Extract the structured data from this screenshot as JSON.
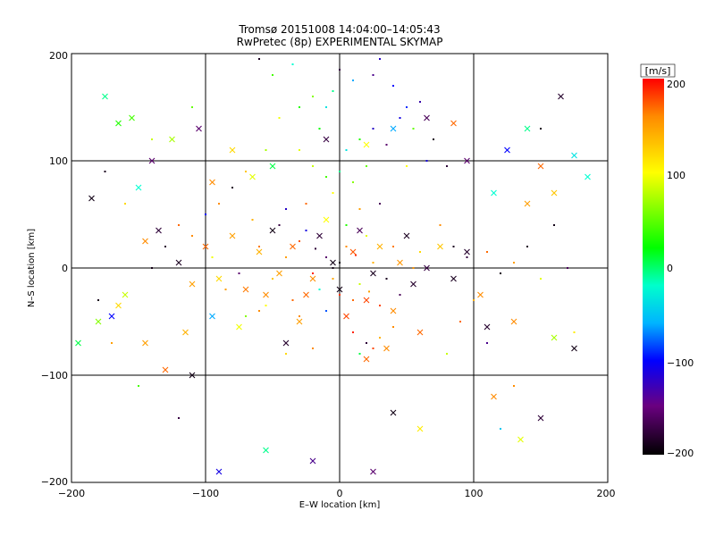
{
  "chart_data": {
    "type": "scatter",
    "title": "Tromsø 20151008 14:04:00–14:05:43",
    "subtitle": "RwPretec (8p) EXPERIMENTAL SKYMAP",
    "xlabel": "E–W location [km]",
    "ylabel": "N–S location [km]",
    "xlim": [
      -200,
      200
    ],
    "ylim": [
      -200,
      200
    ],
    "xticks": [
      "−200",
      "−100",
      "0",
      "100",
      "200"
    ],
    "yticks": [
      "−200",
      "−100",
      "0",
      "100",
      "200"
    ],
    "grid": true,
    "colorbar": {
      "label": "[m/s]",
      "range": [
        -200,
        200
      ],
      "ticks": [
        "200",
        "100",
        "0",
        "−100",
        "−200"
      ]
    },
    "series": [
      {
        "marker": "dot",
        "points": [
          [
            -10,
            10,
            -150
          ],
          [
            5,
            20,
            160
          ],
          [
            -20,
            -5,
            190
          ],
          [
            15,
            -15,
            60
          ],
          [
            -5,
            0,
            -190
          ],
          [
            25,
            5,
            140
          ],
          [
            -30,
            25,
            175
          ],
          [
            -15,
            -20,
            -30
          ],
          [
            10,
            -30,
            170
          ],
          [
            35,
            -10,
            -185
          ],
          [
            -40,
            10,
            150
          ],
          [
            0,
            -25,
            185
          ],
          [
            20,
            30,
            80
          ],
          [
            -25,
            35,
            -110
          ],
          [
            40,
            20,
            165
          ],
          [
            -50,
            -10,
            130
          ],
          [
            45,
            -25,
            -160
          ],
          [
            -35,
            -30,
            170
          ],
          [
            5,
            40,
            10
          ],
          [
            -10,
            -40,
            -80
          ],
          [
            55,
            0,
            155
          ],
          [
            30,
            -35,
            180
          ],
          [
            -45,
            40,
            -170
          ],
          [
            60,
            15,
            120
          ],
          [
            -60,
            20,
            165
          ],
          [
            0,
            5,
            -195
          ],
          [
            -5,
            -10,
            145
          ],
          [
            12,
            12,
            190
          ],
          [
            -18,
            18,
            -175
          ],
          [
            22,
            -22,
            150
          ],
          [
            -55,
            -35,
            100
          ],
          [
            -30,
            -45,
            160
          ],
          [
            10,
            -60,
            190
          ],
          [
            20,
            -70,
            -175
          ],
          [
            30,
            -65,
            140
          ],
          [
            40,
            -55,
            160
          ],
          [
            25,
            -75,
            180
          ],
          [
            15,
            -80,
            -10
          ],
          [
            -20,
            -75,
            160
          ],
          [
            -40,
            -80,
            120
          ],
          [
            -60,
            -40,
            160
          ],
          [
            -70,
            -45,
            40
          ],
          [
            -25,
            60,
            170
          ],
          [
            -40,
            55,
            -120
          ],
          [
            15,
            55,
            150
          ],
          [
            30,
            60,
            -160
          ],
          [
            -5,
            70,
            100
          ],
          [
            10,
            80,
            40
          ],
          [
            -10,
            85,
            20
          ],
          [
            0,
            90,
            -20
          ],
          [
            -20,
            95,
            60
          ],
          [
            20,
            95,
            30
          ],
          [
            -30,
            110,
            80
          ],
          [
            5,
            110,
            -40
          ],
          [
            15,
            120,
            10
          ],
          [
            -15,
            130,
            0
          ],
          [
            25,
            130,
            -120
          ],
          [
            35,
            115,
            -150
          ],
          [
            45,
            140,
            -110
          ],
          [
            50,
            150,
            -90
          ],
          [
            60,
            155,
            -130
          ],
          [
            40,
            170,
            -100
          ],
          [
            25,
            180,
            -140
          ],
          [
            10,
            175,
            -60
          ],
          [
            -5,
            165,
            -20
          ],
          [
            -20,
            160,
            40
          ],
          [
            -30,
            150,
            10
          ],
          [
            -45,
            140,
            90
          ],
          [
            -10,
            150,
            -40
          ],
          [
            0,
            185,
            -170
          ],
          [
            -35,
            190,
            -30
          ],
          [
            -60,
            195,
            -185
          ],
          [
            -50,
            180,
            20
          ],
          [
            30,
            195,
            -120
          ],
          [
            55,
            130,
            30
          ],
          [
            70,
            120,
            -190
          ],
          [
            65,
            100,
            -110
          ],
          [
            80,
            95,
            -175
          ],
          [
            50,
            95,
            100
          ],
          [
            -55,
            110,
            50
          ],
          [
            -70,
            90,
            130
          ],
          [
            -80,
            75,
            -185
          ],
          [
            -90,
            60,
            160
          ],
          [
            -100,
            50,
            -100
          ],
          [
            -110,
            30,
            160
          ],
          [
            -120,
            40,
            170
          ],
          [
            -130,
            20,
            -180
          ],
          [
            -140,
            0,
            -190
          ],
          [
            -95,
            10,
            90
          ],
          [
            -85,
            -20,
            150
          ],
          [
            -75,
            -5,
            -150
          ],
          [
            -65,
            45,
            140
          ],
          [
            75,
            40,
            160
          ],
          [
            85,
            20,
            -185
          ],
          [
            95,
            10,
            -170
          ],
          [
            110,
            15,
            170
          ],
          [
            120,
            -5,
            -190
          ],
          [
            130,
            5,
            150
          ],
          [
            140,
            20,
            -185
          ],
          [
            150,
            -10,
            80
          ],
          [
            160,
            40,
            -190
          ],
          [
            170,
            0,
            -160
          ],
          [
            100,
            -30,
            140
          ],
          [
            90,
            -50,
            170
          ],
          [
            80,
            -80,
            60
          ],
          [
            110,
            -70,
            -140
          ],
          [
            130,
            -110,
            160
          ],
          [
            120,
            -150,
            -50
          ],
          [
            -120,
            -140,
            -170
          ],
          [
            -150,
            -110,
            20
          ],
          [
            -170,
            -70,
            150
          ],
          [
            -180,
            -30,
            -190
          ],
          [
            -160,
            60,
            120
          ],
          [
            -175,
            90,
            -185
          ],
          [
            -140,
            120,
            60
          ],
          [
            -110,
            150,
            30
          ],
          [
            150,
            130,
            -190
          ],
          [
            175,
            -60,
            110
          ]
        ]
      },
      {
        "marker": "x",
        "points": [
          [
            -5,
            5,
            -190
          ],
          [
            10,
            15,
            175
          ],
          [
            -20,
            -10,
            160
          ],
          [
            25,
            -5,
            -185
          ],
          [
            -35,
            20,
            170
          ],
          [
            30,
            20,
            140
          ],
          [
            -15,
            30,
            -175
          ],
          [
            45,
            5,
            155
          ],
          [
            0,
            -20,
            -190
          ],
          [
            20,
            -30,
            180
          ],
          [
            -45,
            -5,
            150
          ],
          [
            55,
            -15,
            -180
          ],
          [
            -25,
            -25,
            170
          ],
          [
            15,
            35,
            -160
          ],
          [
            -60,
            15,
            140
          ],
          [
            65,
            0,
            -170
          ],
          [
            40,
            -40,
            160
          ],
          [
            -50,
            35,
            -190
          ],
          [
            5,
            -45,
            180
          ],
          [
            -10,
            45,
            100
          ],
          [
            50,
            30,
            -185
          ],
          [
            -70,
            -20,
            165
          ],
          [
            75,
            20,
            130
          ],
          [
            -30,
            -50,
            150
          ],
          [
            20,
            -85,
            170
          ],
          [
            35,
            -75,
            160
          ],
          [
            -40,
            -70,
            -180
          ],
          [
            60,
            -60,
            170
          ],
          [
            -80,
            30,
            150
          ],
          [
            85,
            -10,
            -185
          ],
          [
            -90,
            -10,
            120
          ],
          [
            95,
            15,
            -180
          ],
          [
            -100,
            20,
            170
          ],
          [
            105,
            -25,
            160
          ],
          [
            -110,
            -15,
            150
          ],
          [
            -120,
            5,
            -185
          ],
          [
            -135,
            35,
            -175
          ],
          [
            -145,
            25,
            160
          ],
          [
            -160,
            -25,
            60
          ],
          [
            -165,
            -35,
            120
          ],
          [
            -170,
            -45,
            -100
          ],
          [
            -180,
            -50,
            40
          ],
          [
            -185,
            65,
            -190
          ],
          [
            -150,
            75,
            -30
          ],
          [
            -140,
            100,
            -150
          ],
          [
            -155,
            140,
            20
          ],
          [
            -165,
            135,
            10
          ],
          [
            -175,
            160,
            -20
          ],
          [
            -125,
            120,
            50
          ],
          [
            -105,
            130,
            -150
          ],
          [
            -95,
            80,
            160
          ],
          [
            -80,
            110,
            120
          ],
          [
            -65,
            85,
            80
          ],
          [
            -50,
            95,
            -10
          ],
          [
            -10,
            120,
            -170
          ],
          [
            20,
            115,
            100
          ],
          [
            40,
            130,
            -60
          ],
          [
            65,
            140,
            -160
          ],
          [
            85,
            135,
            170
          ],
          [
            95,
            100,
            -150
          ],
          [
            115,
            70,
            -30
          ],
          [
            125,
            110,
            -100
          ],
          [
            140,
            130,
            -20
          ],
          [
            150,
            95,
            170
          ],
          [
            165,
            160,
            -180
          ],
          [
            175,
            105,
            -40
          ],
          [
            185,
            85,
            -30
          ],
          [
            160,
            70,
            130
          ],
          [
            140,
            60,
            150
          ],
          [
            175,
            -75,
            -190
          ],
          [
            160,
            -65,
            50
          ],
          [
            130,
            -50,
            160
          ],
          [
            110,
            -55,
            -180
          ],
          [
            150,
            -140,
            -175
          ],
          [
            135,
            -160,
            80
          ],
          [
            115,
            -120,
            160
          ],
          [
            60,
            -150,
            110
          ],
          [
            40,
            -135,
            -190
          ],
          [
            25,
            -190,
            -150
          ],
          [
            -20,
            -180,
            -140
          ],
          [
            -55,
            -170,
            -20
          ],
          [
            -90,
            -190,
            -110
          ],
          [
            -110,
            -100,
            -190
          ],
          [
            -130,
            -95,
            170
          ],
          [
            -145,
            -70,
            150
          ],
          [
            -115,
            -60,
            140
          ],
          [
            -95,
            -45,
            -60
          ],
          [
            -75,
            -55,
            90
          ],
          [
            -55,
            -25,
            160
          ],
          [
            -195,
            -70,
            -10
          ]
        ]
      }
    ]
  }
}
